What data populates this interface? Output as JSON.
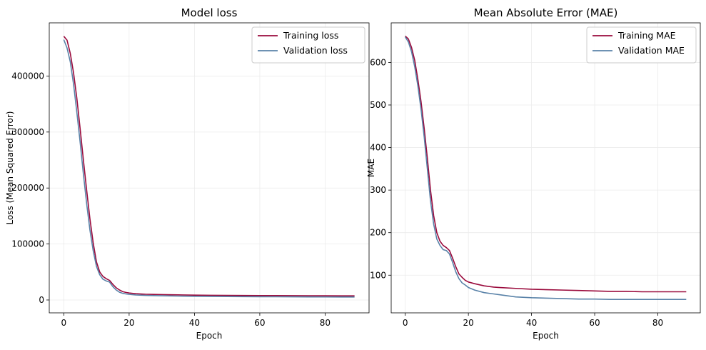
{
  "chart_data": [
    {
      "type": "line",
      "title": "Model loss",
      "xlabel": "Epoch",
      "ylabel": "Loss (Mean Squared Error)",
      "xlim": [
        -4.45,
        93.45
      ],
      "ylim": [
        -23000,
        495000
      ],
      "xticks": [
        0,
        20,
        40,
        60,
        80
      ],
      "yticks": [
        0,
        100000,
        200000,
        300000,
        400000
      ],
      "grid": true,
      "legend": "top-right",
      "series": [
        {
          "name": "Training loss",
          "color": "#9a0a3c",
          "x": [
            0,
            1,
            2,
            3,
            4,
            5,
            6,
            7,
            8,
            9,
            10,
            11,
            12,
            13,
            14,
            15,
            16,
            17,
            18,
            19,
            20,
            22,
            25,
            30,
            35,
            40,
            45,
            50,
            55,
            60,
            65,
            70,
            75,
            80,
            85,
            89
          ],
          "y": [
            471000,
            464000,
            440000,
            405000,
            360000,
            306000,
            250000,
            196000,
            145000,
            102000,
            68000,
            50000,
            42000,
            38000,
            35000,
            28000,
            22000,
            18000,
            15000,
            13500,
            12500,
            11200,
            10300,
            9600,
            9100,
            8700,
            8400,
            8200,
            8000,
            7900,
            7800,
            7700,
            7600,
            7500,
            7400,
            7400
          ]
        },
        {
          "name": "Validation loss",
          "color": "#5982a8",
          "x": [
            0,
            1,
            2,
            3,
            4,
            5,
            6,
            7,
            8,
            9,
            10,
            11,
            12,
            13,
            14,
            15,
            16,
            17,
            18,
            19,
            20,
            22,
            25,
            30,
            35,
            40,
            45,
            50,
            55,
            60,
            65,
            70,
            75,
            80,
            85,
            89
          ],
          "y": [
            465000,
            450000,
            425000,
            385000,
            335000,
            282000,
            225000,
            172000,
            125000,
            88000,
            60000,
            45000,
            37000,
            34000,
            32000,
            24000,
            18000,
            14000,
            12000,
            10800,
            10000,
            9000,
            8200,
            7500,
            7000,
            6600,
            6300,
            6100,
            5900,
            5800,
            5700,
            5600,
            5500,
            5400,
            5300,
            5300
          ]
        }
      ]
    },
    {
      "type": "line",
      "title": "Mean Absolute Error (MAE)",
      "xlabel": "Epoch",
      "ylabel": "MAE",
      "xlim": [
        -4.45,
        93.45
      ],
      "ylim": [
        11.5,
        693
      ],
      "xticks": [
        0,
        20,
        40,
        60,
        80
      ],
      "yticks": [
        100,
        200,
        300,
        400,
        500,
        600
      ],
      "grid": true,
      "legend": "top-right",
      "series": [
        {
          "name": "Training MAE",
          "color": "#9a0a3c",
          "x": [
            0,
            1,
            2,
            3,
            4,
            5,
            6,
            7,
            8,
            9,
            10,
            11,
            12,
            13,
            14,
            15,
            16,
            17,
            18,
            19,
            20,
            22,
            25,
            28,
            30,
            35,
            40,
            45,
            50,
            55,
            60,
            65,
            70,
            75,
            80,
            85,
            89
          ],
          "y": [
            662,
            655,
            635,
            605,
            560,
            508,
            445,
            375,
            300,
            240,
            200,
            180,
            170,
            165,
            158,
            140,
            120,
            103,
            95,
            88,
            84,
            80,
            75,
            72,
            71,
            69,
            67,
            66,
            65,
            64,
            63,
            62,
            62,
            61,
            61,
            61,
            61
          ]
        },
        {
          "name": "Validation MAE",
          "color": "#5982a8",
          "x": [
            0,
            1,
            2,
            3,
            4,
            5,
            6,
            7,
            8,
            9,
            10,
            11,
            12,
            13,
            14,
            15,
            16,
            17,
            18,
            19,
            20,
            22,
            25,
            28,
            30,
            35,
            40,
            45,
            50,
            55,
            60,
            65,
            70,
            75,
            80,
            85,
            89
          ],
          "y": [
            660,
            648,
            625,
            590,
            545,
            490,
            425,
            350,
            275,
            220,
            185,
            170,
            160,
            158,
            150,
            130,
            108,
            92,
            82,
            77,
            71,
            65,
            59,
            56,
            54,
            49,
            47,
            46,
            45,
            44,
            44,
            43,
            43,
            43,
            43,
            43,
            43
          ]
        }
      ]
    }
  ]
}
